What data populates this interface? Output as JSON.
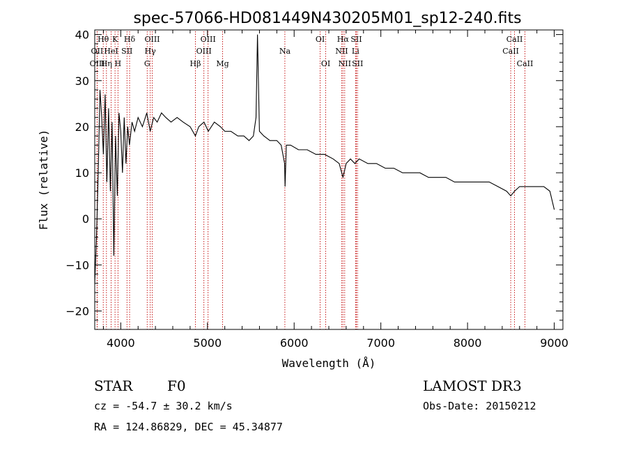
{
  "chart_data": {
    "type": "line",
    "title": "spec-57066-HD081449N430205M01_sp12-240.fits",
    "xlabel": "Wavelength (Å)",
    "ylabel": "Flux (relative)",
    "xlim": [
      3700,
      9100
    ],
    "ylim": [
      -24,
      41
    ],
    "xticks": [
      4000,
      5000,
      6000,
      7000,
      8000,
      9000
    ],
    "yticks": [
      -20,
      -10,
      0,
      10,
      20,
      30,
      40
    ],
    "series": [
      {
        "name": "flux",
        "x": [
          3700,
          3720,
          3740,
          3760,
          3780,
          3800,
          3820,
          3840,
          3860,
          3880,
          3900,
          3920,
          3940,
          3960,
          3980,
          4000,
          4020,
          4040,
          4060,
          4080,
          4100,
          4130,
          4160,
          4200,
          4250,
          4300,
          4340,
          4380,
          4420,
          4470,
          4520,
          4580,
          4650,
          4720,
          4800,
          4861,
          4900,
          4960,
          5010,
          5080,
          5150,
          5200,
          5270,
          5350,
          5420,
          5480,
          5530,
          5560,
          5577,
          5600,
          5650,
          5720,
          5800,
          5850,
          5890,
          5895,
          5910,
          5960,
          6050,
          6150,
          6250,
          6350,
          6450,
          6520,
          6563,
          6600,
          6650,
          6700,
          6750,
          6850,
          6950,
          7050,
          7150,
          7250,
          7350,
          7450,
          7550,
          7650,
          7750,
          7850,
          7950,
          8050,
          8150,
          8250,
          8350,
          8450,
          8498,
          8542,
          8600,
          8662,
          8720,
          8800,
          8880,
          8950,
          9000
        ],
        "y": [
          -14,
          -4,
          10,
          28,
          22,
          14,
          27,
          8,
          24,
          6,
          21,
          -8,
          18,
          5,
          23,
          19,
          10,
          22,
          12,
          20,
          16,
          21,
          19,
          22,
          20,
          23,
          19,
          22,
          21,
          23,
          22,
          21,
          22,
          21,
          20,
          18,
          20,
          21,
          19,
          21,
          20,
          19,
          19,
          18,
          18,
          17,
          18,
          22,
          40,
          19,
          18,
          17,
          17,
          16,
          12,
          7,
          16,
          16,
          15,
          15,
          14,
          14,
          13,
          12,
          9,
          12,
          13,
          12,
          13,
          12,
          12,
          11,
          11,
          10,
          10,
          10,
          9,
          9,
          9,
          8,
          8,
          8,
          8,
          8,
          7,
          6,
          5,
          6,
          7,
          7,
          7,
          7,
          7,
          6,
          2
        ]
      }
    ],
    "lines": [
      {
        "name": "H-eta",
        "label": "Hη",
        "wave": 3835,
        "row": 2
      },
      {
        "name": "H-theta",
        "label": "Hθ",
        "wave": 3798,
        "row": 0
      },
      {
        "name": "CaII-K",
        "label": "K",
        "wave": 3934,
        "row": 0
      },
      {
        "name": "CaII-H",
        "label": "H",
        "wave": 3968,
        "row": 2
      },
      {
        "name": "H-delta",
        "label": "Hδ",
        "wave": 4102,
        "row": 0
      },
      {
        "name": "OII",
        "label": "OII",
        "wave": 3727,
        "row": 1
      },
      {
        "name": "OIII-3727",
        "label": "OIII",
        "wave": 3729,
        "row": 2
      },
      {
        "name": "HeI",
        "label": "HeI",
        "wave": 3889,
        "row": 1
      },
      {
        "name": "SII-4072",
        "label": "SII",
        "wave": 4072,
        "row": 1
      },
      {
        "name": "OIII-4363",
        "label": "OIII",
        "wave": 4363,
        "row": 0
      },
      {
        "name": "H-gamma",
        "label": "Hγ",
        "wave": 4340,
        "row": 1
      },
      {
        "name": "G-band",
        "label": "G",
        "wave": 4305,
        "row": 2
      },
      {
        "name": "H-beta",
        "label": "Hβ",
        "wave": 4861,
        "row": 2
      },
      {
        "name": "OIII-4959",
        "label": "OIII",
        "wave": 4959,
        "row": 1
      },
      {
        "name": "OIII-5007",
        "label": "OIII",
        "wave": 5007,
        "row": 0
      },
      {
        "name": "Mg",
        "label": "Mg",
        "wave": 5175,
        "row": 2
      },
      {
        "name": "Na",
        "label": "Na",
        "wave": 5893,
        "row": 1
      },
      {
        "name": "OI-6300",
        "label": "OI",
        "wave": 6300,
        "row": 0
      },
      {
        "name": "OI-6364",
        "label": "OI",
        "wave": 6364,
        "row": 2
      },
      {
        "name": "H-alpha",
        "label": "Hα",
        "wave": 6563,
        "row": 0
      },
      {
        "name": "NII-6548",
        "label": "NII",
        "wave": 6548,
        "row": 1
      },
      {
        "name": "NII-6583",
        "label": "NII",
        "wave": 6583,
        "row": 2
      },
      {
        "name": "SII-6717",
        "label": "SII",
        "wave": 6717,
        "row": 0
      },
      {
        "name": "Li",
        "label": "Li",
        "wave": 6708,
        "row": 1
      },
      {
        "name": "SII-6731",
        "label": "SII",
        "wave": 6731,
        "row": 2
      },
      {
        "name": "CaII-8498",
        "label": "CaII",
        "wave": 8498,
        "row": 1
      },
      {
        "name": "CaII-8542",
        "label": "CaII",
        "wave": 8542,
        "row": 0
      },
      {
        "name": "CaII-8662",
        "label": "CaII",
        "wave": 8662,
        "row": 2
      }
    ]
  },
  "info": {
    "object_type": "STAR",
    "subclass": "F0",
    "survey": "LAMOST DR3",
    "redshift": "cz = -54.7 ± 30.2 km/s",
    "obs_date": "Obs-Date: 20150212",
    "coords": "RA = 124.86829, DEC =  45.34877"
  },
  "colors": {
    "line_marker": "#c00000",
    "spectrum": "#000000"
  }
}
